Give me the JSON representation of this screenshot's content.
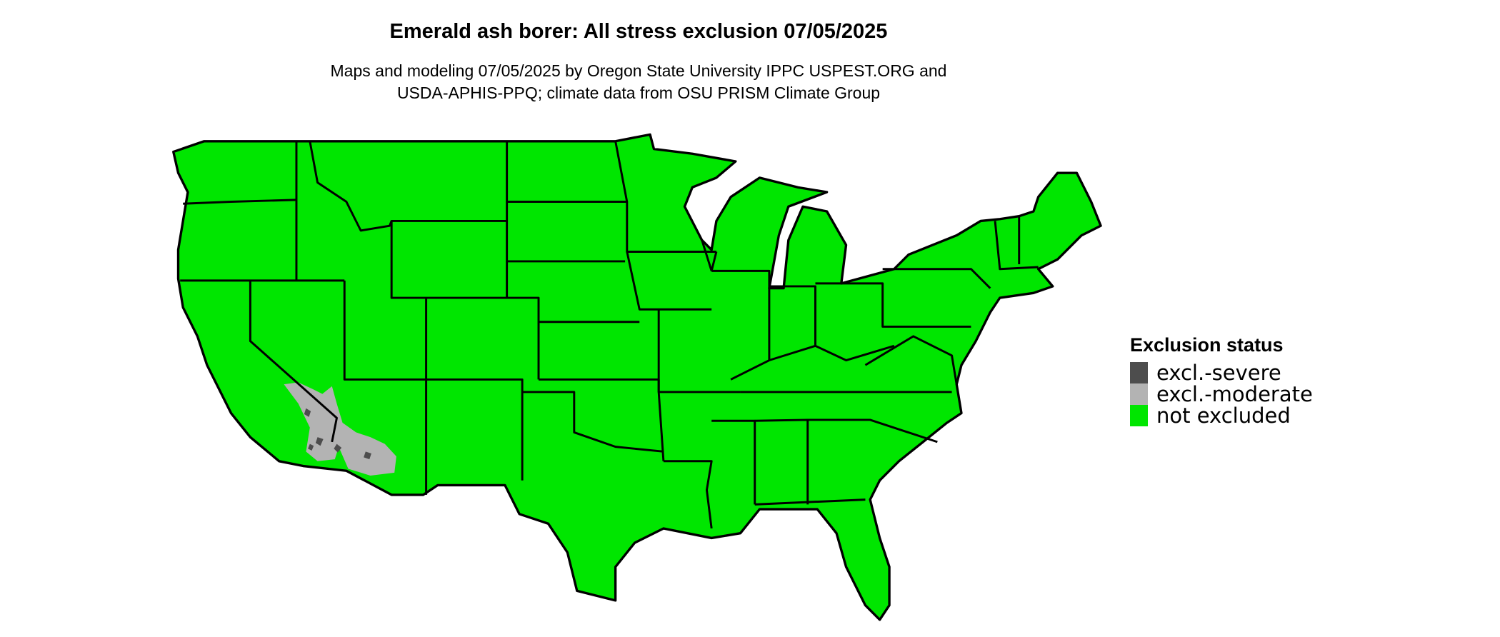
{
  "title": "Emerald ash borer: All stress exclusion 07/05/2025",
  "subtitle_lines": [
    "Maps and modeling 07/05/2025 by Oregon State University IPPC USPEST.ORG and",
    "USDA-APHIS-PPQ; climate data from OSU PRISM Climate Group"
  ],
  "legend": {
    "title": "Exclusion status",
    "items": [
      {
        "label": "excl.-severe",
        "color": "#4d4d4d"
      },
      {
        "label": "excl.-moderate",
        "color": "#b3b3b3"
      },
      {
        "label": "not excluded",
        "color": "#00e600"
      }
    ]
  },
  "map": {
    "region": "Contiguous United States",
    "dominant_status": "not excluded",
    "excluded_area_status": "excl.-moderate, scattered excl.-severe in southwestern desert (AZ/CA/NV border)"
  }
}
